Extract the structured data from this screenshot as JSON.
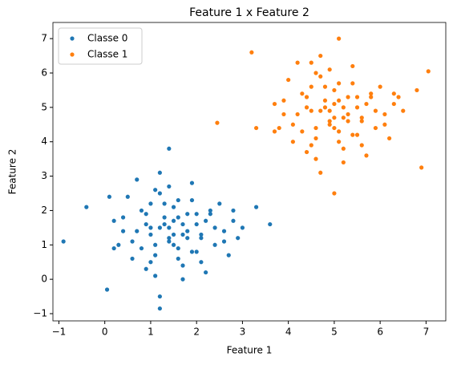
{
  "chart_data": {
    "type": "scatter",
    "title": "Feature 1 x Feature 2",
    "x_label": "Feature 1",
    "y_label": "Feature 2",
    "xlim": [
      -1.13,
      7.43
    ],
    "ylim": [
      -1.21,
      7.47
    ],
    "xticks": [
      {
        "value": -1,
        "label": "−1"
      },
      0,
      1,
      2,
      3,
      4,
      5,
      6,
      7
    ],
    "yticks": [
      {
        "value": -1,
        "label": "−1"
      },
      0,
      1,
      2,
      3,
      4,
      5,
      6,
      7
    ],
    "legend": "upper left",
    "series": [
      {
        "name": "Classe 0",
        "color": "#1f77b4",
        "x": [
          1.2,
          0.8,
          2.1,
          1.6,
          0.4,
          1.9,
          2.6,
          1.1,
          1.4,
          0.9,
          2.3,
          1.7,
          0.6,
          1.3,
          2.0,
          1.5,
          2.8,
          0.2,
          1.0,
          1.8,
          2.4,
          1.2,
          0.7,
          1.6,
          2.2,
          1.4,
          0.5,
          3.0,
          1.1,
          1.9,
          1.3,
          2.7,
          0.9,
          1.5,
          2.1,
          0.3,
          1.7,
          1.0,
          2.5,
          1.6,
          1.2,
          0.8,
          2.0,
          1.4,
          3.3,
          0.6,
          1.8,
          1.1,
          2.2,
          1.5,
          -0.9,
          1.4,
          3.6,
          1.2,
          0.05,
          -0.4,
          0.1,
          2.9,
          1.0,
          1.7,
          2.4,
          0.7,
          1.3,
          1.9,
          2.6,
          0.4,
          1.6,
          2.0,
          1.1,
          1.5,
          0.9,
          2.3,
          1.8,
          1.2,
          0.2,
          2.8,
          1.4,
          1.0,
          1.7,
          2.1
        ],
        "values": [
          1.5,
          2.0,
          1.2,
          0.6,
          1.8,
          2.3,
          1.4,
          1.0,
          2.7,
          0.3,
          1.9,
          1.6,
          1.1,
          2.2,
          0.8,
          1.3,
          2.0,
          1.7,
          0.5,
          1.9,
          1.0,
          2.5,
          1.4,
          0.9,
          1.7,
          1.2,
          2.4,
          1.5,
          0.1,
          2.8,
          1.6,
          0.7,
          1.9,
          2.1,
          1.3,
          1.0,
          0.4,
          1.5,
          2.2,
          1.8,
          3.1,
          0.9,
          1.6,
          1.1,
          2.1,
          0.6,
          1.4,
          2.6,
          0.2,
          1.7,
          1.1,
          3.8,
          1.6,
          -0.85,
          -0.3,
          2.1,
          2.4,
          1.2,
          1.3,
          0.0,
          1.5,
          2.9,
          1.8,
          0.8,
          1.1,
          1.4,
          2.3,
          1.9,
          0.7,
          1.0,
          1.6,
          2.0,
          1.2,
          -0.5,
          0.9,
          1.7,
          1.5,
          2.2,
          1.3,
          0.5
        ]
      },
      {
        "name": "Classe 1",
        "color": "#ff7f0e",
        "x": [
          4.7,
          4.3,
          5.6,
          5.1,
          3.9,
          5.4,
          6.1,
          4.6,
          4.9,
          4.4,
          5.8,
          5.2,
          4.1,
          4.8,
          5.5,
          5.0,
          6.3,
          3.7,
          4.5,
          5.3,
          5.9,
          4.7,
          4.2,
          5.1,
          5.7,
          4.9,
          4.0,
          6.5,
          4.6,
          5.4,
          4.8,
          6.2,
          4.4,
          5.0,
          5.6,
          3.8,
          5.2,
          4.5,
          6.0,
          5.1,
          4.7,
          4.3,
          5.5,
          4.9,
          6.8,
          4.1,
          5.3,
          4.6,
          5.7,
          5.0,
          2.45,
          5.0,
          7.05,
          6.9,
          5.1,
          3.2,
          3.3,
          6.4,
          4.5,
          5.2,
          5.9,
          4.2,
          4.8,
          5.4,
          6.1,
          3.9,
          5.1,
          5.5,
          4.6,
          5.0,
          4.4,
          5.8,
          5.3,
          4.7,
          3.7,
          6.3,
          4.9,
          4.5,
          5.2,
          5.6
        ],
        "values": [
          4.9,
          5.4,
          4.6,
          4.0,
          5.2,
          5.7,
          4.8,
          4.4,
          6.1,
          3.7,
          5.3,
          5.0,
          4.5,
          5.6,
          4.2,
          4.7,
          5.4,
          5.1,
          3.9,
          5.3,
          4.4,
          5.9,
          4.8,
          4.3,
          5.1,
          4.6,
          5.8,
          4.9,
          3.5,
          6.2,
          5.0,
          4.1,
          5.3,
          5.5,
          4.7,
          4.4,
          3.8,
          4.9,
          5.6,
          5.2,
          6.5,
          4.3,
          5.0,
          4.5,
          5.5,
          4.0,
          4.8,
          6.0,
          3.6,
          5.1,
          4.55,
          2.5,
          6.05,
          3.25,
          7.0,
          6.6,
          4.4,
          5.3,
          6.3,
          3.4,
          4.9,
          6.3,
          5.2,
          4.2,
          4.5,
          4.8,
          5.7,
          5.3,
          4.1,
          4.4,
          5.0,
          5.4,
          4.6,
          3.1,
          4.3,
          5.1,
          4.9,
          5.6,
          4.7,
          3.9
        ]
      }
    ]
  }
}
